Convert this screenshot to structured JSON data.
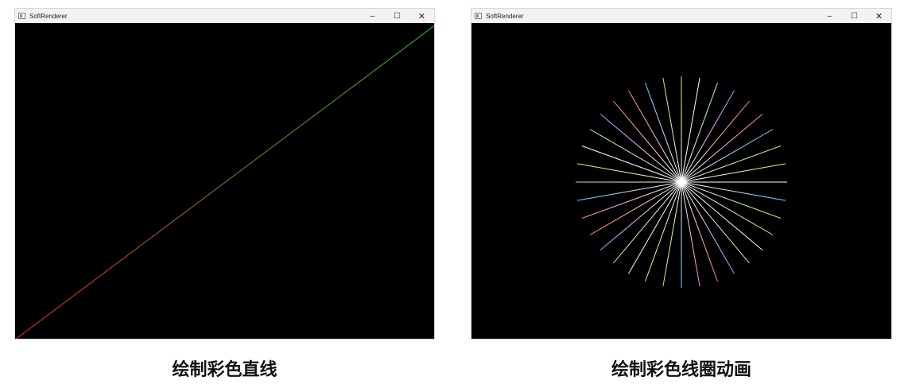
{
  "windows": [
    {
      "title": "SoftRenderer",
      "controls": {
        "minimize": "–",
        "maximize": "☐",
        "close": "✕"
      },
      "scene": {
        "type": "colored-line",
        "start_color": "#ff2020",
        "end_color": "#20d020"
      }
    },
    {
      "title": "SoftRenderer",
      "controls": {
        "minimize": "–",
        "maximize": "☐",
        "close": "✕"
      },
      "scene": {
        "type": "colored-line-circle",
        "spoke_count": 36,
        "spoke_colors": [
          "#ffffff",
          "#f2e86a",
          "#b6f07a",
          "#6fd3ff",
          "#ff7ad9",
          "#ff8a5a",
          "#c38bff",
          "#9bffb0"
        ]
      }
    }
  ],
  "captions": [
    "绘制彩色直线",
    "绘制彩色线圈动画"
  ]
}
